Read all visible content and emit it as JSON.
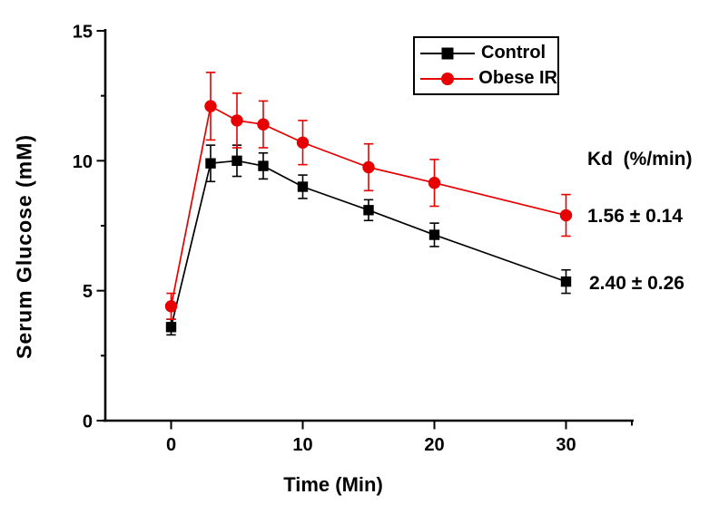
{
  "chart_data": {
    "type": "line",
    "title": "",
    "xlabel": "Time (Min)",
    "ylabel": "Serum Glucose (mM)",
    "xlim": [
      -5,
      35
    ],
    "ylim": [
      0,
      15
    ],
    "x_ticks": [
      0,
      10,
      20,
      30
    ],
    "x_minor_ticks": [
      35
    ],
    "y_ticks": [
      0,
      5,
      10,
      15
    ],
    "y_minor_ticks": [
      2.5,
      7.5,
      12.5
    ],
    "grid": false,
    "legend_position": "top-right-inside",
    "x": [
      0,
      3,
      5,
      7,
      10,
      15,
      20,
      30
    ],
    "series": [
      {
        "name": "Control",
        "marker": "square",
        "color": "#000000",
        "values": [
          3.6,
          9.9,
          10.0,
          9.8,
          9.0,
          8.1,
          7.15,
          5.35
        ],
        "errors": [
          0.3,
          0.7,
          0.6,
          0.5,
          0.45,
          0.4,
          0.45,
          0.45
        ],
        "kd": "2.40 ± 0.26"
      },
      {
        "name": "Obese IR",
        "marker": "circle",
        "color": "#e60000",
        "values": [
          4.4,
          12.1,
          11.55,
          11.4,
          10.7,
          9.75,
          9.15,
          7.9
        ],
        "errors": [
          0.5,
          1.3,
          1.05,
          0.9,
          0.85,
          0.9,
          0.9,
          0.8
        ],
        "kd": "1.56 ± 0.14"
      }
    ],
    "annotations": {
      "kd_header": "Kd  (%/min)",
      "kd_obese_ir": "1.56 ± 0.14",
      "kd_control": "2.40 ± 0.26"
    }
  }
}
